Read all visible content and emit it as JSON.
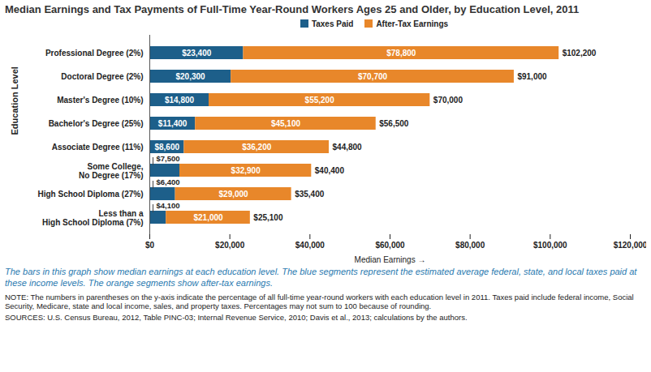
{
  "chart_data": {
    "type": "bar",
    "orientation": "horizontal",
    "stacked": true,
    "title": "Median Earnings and Tax Payments of Full-Time Year-Round Workers Ages 25 and Older, by Education Level, 2011",
    "x_label": "Median Earnings",
    "y_label": "Education Level",
    "categories": [
      "Professional Degree (2%)",
      "Doctoral Degree (2%)",
      "Master's Degree (10%)",
      "Bachelor's Degree (25%)",
      "Associate Degree (11%)",
      "Some College,\nNo Degree (17%)",
      "High School Diploma (27%)",
      "Less than a\nHigh School Diploma (7%)"
    ],
    "series": [
      {
        "name": "Taxes Paid",
        "color": "#1d5f8a",
        "values": [
          23400,
          20300,
          14800,
          11400,
          8600,
          7500,
          6400,
          4100
        ],
        "value_labels": [
          "$23,400",
          "$20,300",
          "$14,800",
          "$11,400",
          "$8,600",
          "$7,500",
          "$6,400",
          "$4,100"
        ]
      },
      {
        "name": "After-Tax Earnings",
        "color": "#e8872a",
        "values": [
          78800,
          70700,
          55200,
          45100,
          36200,
          32900,
          29000,
          21000
        ],
        "value_labels": [
          "$78,800",
          "$70,700",
          "$55,200",
          "$45,100",
          "$36,200",
          "$32,900",
          "$29,000",
          "$21,000"
        ]
      }
    ],
    "totals": [
      102200,
      91000,
      70000,
      56500,
      44800,
      40400,
      35400,
      25100
    ],
    "total_labels": [
      "$102,200",
      "$91,000",
      "$70,000",
      "$56,500",
      "$44,800",
      "$40,400",
      "$35,400",
      "$25,100"
    ],
    "xlim": [
      0,
      120000
    ],
    "xticks": [
      {
        "value": 0,
        "label": "$0"
      },
      {
        "value": 20000,
        "label": "$20,000"
      },
      {
        "value": 40000,
        "label": "$40,000"
      },
      {
        "value": 60000,
        "label": "$60,000"
      },
      {
        "value": 80000,
        "label": "$80,000"
      },
      {
        "value": 100000,
        "label": "$100,000"
      },
      {
        "value": 120000,
        "label": "$120,000"
      }
    ],
    "grid": false,
    "legend": "top",
    "data_labels": true,
    "caption": "The bars in this graph show median earnings at each education level. The blue segments represent the estimated average federal, state, and local taxes paid at these income levels. The orange segments show after-tax earnings.",
    "note": "NOTE: The numbers in parentheses on the y-axis indicate the percentage of all full-time year-round workers with each education level in 2011. Taxes paid include federal income, Social Security, Medicare, state and local income, sales, and property taxes. Percentages may not sum to 100 because of rounding.",
    "sources": "SOURCES: U.S. Census Bureau, 2012, Table PINC-03; Internal Revenue Service, 2010; Davis et al., 2013; calculations by the authors."
  }
}
